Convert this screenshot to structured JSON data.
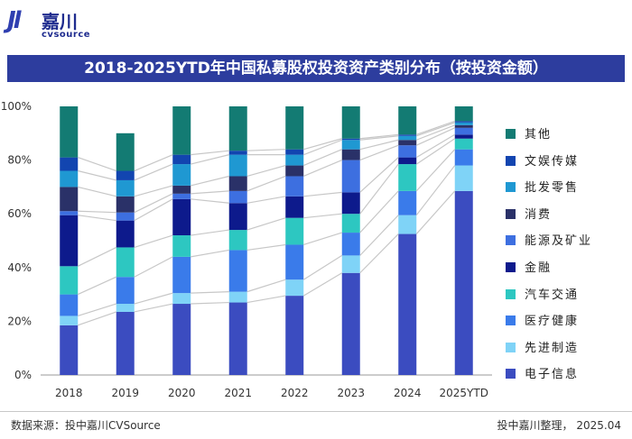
{
  "header": {
    "logo_mark": "Jl",
    "logo_cn": "嘉川",
    "logo_en": "cvsource"
  },
  "title": "2018-2025YTD年中国私募股权投资资产类别分布（按投资金额）",
  "footer": {
    "source": "数据来源：投中嘉川CVSource",
    "credit": "投中嘉川整理， 2025.04"
  },
  "chart_data": {
    "type": "stacked-bar-100",
    "title": "2018-2025YTD年中国私募股权投资资产类别分布（按投资金额）",
    "categories": [
      "2018",
      "2019",
      "2020",
      "2021",
      "2022",
      "2023",
      "2024",
      "2025YTD"
    ],
    "y_ticks": [
      "0%",
      "20%",
      "40%",
      "60%",
      "80%",
      "100%"
    ],
    "ylim": [
      0,
      100
    ],
    "series": [
      {
        "name": "电子信息",
        "color": "#3b4cc0",
        "values": [
          18.5,
          23.5,
          26.5,
          27.0,
          29.5,
          38.0,
          52.5,
          68.5
        ]
      },
      {
        "name": "先进制造",
        "color": "#7fd3f7",
        "values": [
          3.5,
          3.0,
          4.0,
          4.0,
          6.0,
          6.5,
          7.0,
          9.5
        ]
      },
      {
        "name": "医疗健康",
        "color": "#3a7bea",
        "values": [
          8.0,
          10.0,
          13.5,
          15.5,
          13.0,
          8.5,
          9.0,
          6.0
        ]
      },
      {
        "name": "汽车交通",
        "color": "#2dc7c1",
        "values": [
          10.5,
          11.0,
          8.0,
          7.5,
          10.0,
          7.0,
          10.0,
          4.0
        ]
      },
      {
        "name": "金融",
        "color": "#0d1a8c",
        "values": [
          19.0,
          10.0,
          13.5,
          10.0,
          8.0,
          8.0,
          2.5,
          1.5
        ]
      },
      {
        "name": "能源及矿业",
        "color": "#3d6fe0",
        "values": [
          1.5,
          3.0,
          2.0,
          4.5,
          7.5,
          12.0,
          4.5,
          2.5
        ]
      },
      {
        "name": "消费",
        "color": "#2a3168",
        "values": [
          9.0,
          6.0,
          3.0,
          5.5,
          4.0,
          4.0,
          2.0,
          1.0
        ]
      },
      {
        "name": "批发零售",
        "color": "#1f98d2",
        "values": [
          6.0,
          6.0,
          8.0,
          8.0,
          4.0,
          3.5,
          1.5,
          1.0
        ]
      },
      {
        "name": "文娱传媒",
        "color": "#1245b0",
        "values": [
          5.0,
          3.5,
          3.5,
          1.5,
          2.0,
          0.5,
          0.5,
          0.5
        ]
      },
      {
        "name": "其他",
        "color": "#137b73",
        "values": [
          19.0,
          14.0,
          18.0,
          16.5,
          16.0,
          12.0,
          10.5,
          5.5
        ]
      }
    ]
  }
}
